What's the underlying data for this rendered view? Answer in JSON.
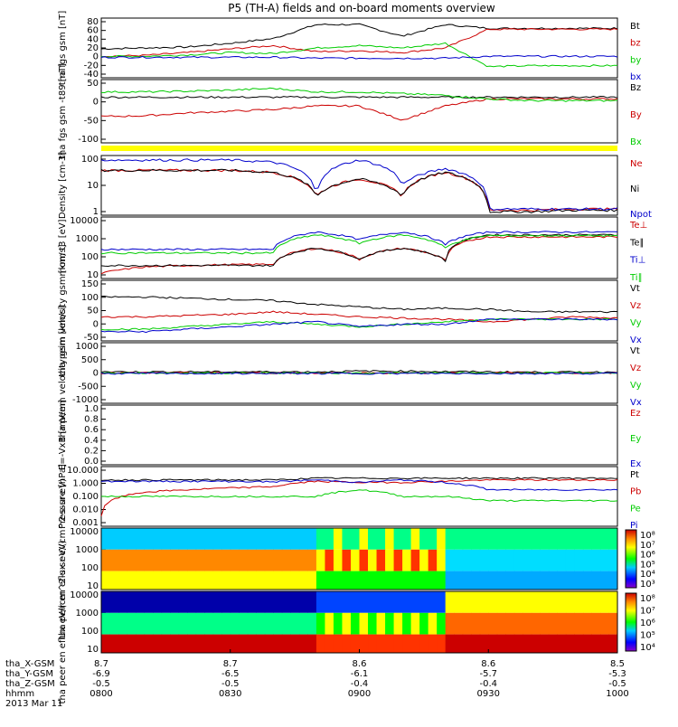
{
  "title": "P5 (TH-A) fields and on-board moments overview",
  "colors": {
    "black": "#000000",
    "red": "#cc0000",
    "green": "#00cc00",
    "blue": "#0000cc",
    "yellow": "#ffff00",
    "navy": "#000088"
  },
  "chart_data": [
    {
      "type": "line",
      "ylabel": "tha fgs gsm [nT]",
      "yticks": [
        "80",
        "60",
        "40",
        "20",
        "0",
        "-20",
        "-40"
      ],
      "ylim": [
        -40,
        80
      ],
      "series": [
        {
          "name": "Bt",
          "color": "black",
          "values": [
            18,
            20,
            22,
            30,
            40,
            70,
            70,
            45,
            70,
            62,
            62,
            62,
            62
          ]
        },
        {
          "name": "bz",
          "color": "red",
          "values": [
            2,
            4,
            10,
            18,
            25,
            12,
            14,
            10,
            20,
            60,
            60,
            60,
            60
          ]
        },
        {
          "name": "by",
          "color": "green",
          "values": [
            2,
            2,
            5,
            10,
            8,
            20,
            25,
            20,
            30,
            -20,
            -18,
            -18,
            -18
          ]
        },
        {
          "name": "bx",
          "color": "blue",
          "values": [
            0,
            0,
            0,
            0,
            0,
            -2,
            -2,
            -2,
            -2,
            2,
            2,
            2,
            2
          ]
        }
      ]
    },
    {
      "type": "line",
      "ylabel": "tha fgs gsm -t89 [nT]",
      "yticks": [
        "50",
        "0",
        "-50",
        "-100"
      ],
      "ylim": [
        -120,
        50
      ],
      "series": [
        {
          "name": "Bz",
          "color": "black",
          "values": [
            5,
            5,
            5,
            5,
            5,
            5,
            5,
            5,
            5,
            5,
            5,
            5,
            5
          ]
        },
        {
          "name": "By",
          "color": "red",
          "values": [
            -50,
            -48,
            -40,
            -35,
            -30,
            -20,
            -20,
            -60,
            -20,
            0,
            0,
            0,
            0
          ]
        },
        {
          "name": "Bx",
          "color": "green",
          "values": [
            20,
            20,
            22,
            25,
            30,
            20,
            20,
            15,
            10,
            0,
            -5,
            -5,
            -5
          ]
        }
      ]
    },
    {
      "type": "line",
      "ylabel": "Density [cm-3]",
      "yticks": [
        "100",
        "10",
        "1"
      ],
      "ylog": true,
      "ylim": [
        0.5,
        200
      ],
      "series": [
        {
          "name": "Ne",
          "color": "red",
          "values": [
            50,
            50,
            50,
            50,
            40,
            3,
            20,
            3,
            40,
            0.7,
            0.7,
            0.8,
            0.8
          ]
        },
        {
          "name": "Ni",
          "color": "black",
          "values": [
            50,
            50,
            50,
            50,
            40,
            3,
            20,
            3,
            40,
            0.6,
            0.6,
            0.7,
            0.7
          ]
        },
        {
          "name": "Npot",
          "color": "blue",
          "values": [
            150,
            150,
            150,
            150,
            120,
            2,
            150,
            10,
            60,
            0.8,
            0.8,
            0.8,
            0.8
          ]
        }
      ]
    },
    {
      "type": "line",
      "ylabel": "mom t3 [eV]",
      "yticks": [
        "10000",
        "1000",
        "100",
        "10"
      ],
      "ylog": true,
      "ylim": [
        5,
        20000
      ],
      "series": [
        {
          "name": "Te⊥",
          "color": "red",
          "values": [
            8,
            20,
            25,
            28,
            30,
            300,
            60,
            300,
            50,
            1500,
            1500,
            1500,
            1500
          ]
        },
        {
          "name": "Te∥",
          "color": "black",
          "values": [
            25,
            25,
            25,
            25,
            25,
            300,
            60,
            300,
            50,
            2000,
            2000,
            2000,
            2000
          ]
        },
        {
          "name": "Ti⊥",
          "color": "blue",
          "values": [
            250,
            250,
            250,
            250,
            250,
            3000,
            1000,
            3000,
            500,
            3000,
            3000,
            3000,
            3000
          ]
        },
        {
          "name": "Ti∥",
          "color": "green",
          "values": [
            150,
            150,
            150,
            150,
            150,
            2000,
            600,
            2000,
            300,
            1800,
            1800,
            1800,
            1800
          ]
        }
      ]
    },
    {
      "type": "line",
      "ylabel": "tha peim velocity gsm [km/s]",
      "yticks": [
        "150",
        "100",
        "50",
        "0",
        "-50"
      ],
      "ylim": [
        -80,
        150
      ],
      "series": [
        {
          "name": "Vt",
          "color": "black",
          "values": [
            90,
            90,
            85,
            80,
            75,
            60,
            50,
            40,
            45,
            40,
            30,
            30,
            30
          ]
        },
        {
          "name": "Vz",
          "color": "red",
          "values": [
            10,
            10,
            15,
            20,
            30,
            20,
            10,
            5,
            0,
            -10,
            0,
            10,
            5
          ]
        },
        {
          "name": "Vy",
          "color": "green",
          "values": [
            -40,
            -40,
            -30,
            -20,
            -10,
            -20,
            -30,
            -20,
            -10,
            0,
            0,
            0,
            0
          ]
        },
        {
          "name": "Vx",
          "color": "blue",
          "values": [
            -50,
            -50,
            -40,
            -30,
            -20,
            -10,
            -30,
            -20,
            -20,
            0,
            0,
            0,
            0
          ]
        }
      ]
    },
    {
      "type": "line",
      "ylabel": "tha peem velocity gsm [km/s]",
      "yticks": [
        "1000",
        "500",
        "0",
        "-500",
        "-1000"
      ],
      "ylim": [
        -1200,
        1200
      ],
      "series": [
        {
          "name": "Vt",
          "color": "black",
          "values": [
            50,
            50,
            50,
            50,
            50,
            50,
            80,
            80,
            60,
            50,
            40,
            40,
            40
          ]
        },
        {
          "name": "Vz",
          "color": "red",
          "values": [
            0,
            0,
            0,
            0,
            0,
            0,
            0,
            0,
            0,
            0,
            0,
            0,
            0
          ]
        },
        {
          "name": "Vy",
          "color": "green",
          "values": [
            0,
            0,
            0,
            0,
            0,
            0,
            0,
            0,
            0,
            0,
            0,
            0,
            0
          ]
        },
        {
          "name": "Vx",
          "color": "blue",
          "values": [
            -20,
            -20,
            -20,
            -20,
            -20,
            -20,
            -20,
            -20,
            -20,
            -20,
            -20,
            -20,
            -20
          ]
        }
      ]
    },
    {
      "type": "line",
      "ylabel": "E=-VxB [mV/m]",
      "yticks": [
        "1.0",
        "0.8",
        "0.6",
        "0.4",
        "0.2",
        "0.0"
      ],
      "ylim": [
        0,
        1
      ],
      "series": [
        {
          "name": "Ez",
          "color": "red",
          "values": []
        },
        {
          "name": "Ey",
          "color": "green",
          "values": []
        },
        {
          "name": "Ex",
          "color": "blue",
          "values": []
        }
      ]
    },
    {
      "type": "line",
      "ylabel": "Pressure [nPa]",
      "yticks": [
        "10.000",
        "1.000",
        "0.100",
        "0.010",
        "0.001"
      ],
      "ylog": true,
      "ylim": [
        0.001,
        10
      ],
      "series": [
        {
          "name": "Pt",
          "color": "black",
          "values": [
            1.5,
            1.5,
            1.5,
            1.5,
            1.5,
            2,
            2,
            2,
            2,
            2,
            2,
            2,
            2
          ]
        },
        {
          "name": "Pb",
          "color": "red",
          "values": [
            0.004,
            0.2,
            0.3,
            0.4,
            0.5,
            1.2,
            1.0,
            1.0,
            1.2,
            1.5,
            1.5,
            1.5,
            1.5
          ]
        },
        {
          "name": "Pe",
          "color": "green",
          "values": [
            0.1,
            0.1,
            0.1,
            0.1,
            0.1,
            0.1,
            0.3,
            0.1,
            0.1,
            0.05,
            0.05,
            0.05,
            0.05
          ]
        },
        {
          "name": "Pi",
          "color": "blue",
          "values": [
            1.2,
            1.2,
            1.2,
            1.2,
            1.1,
            1.5,
            1.0,
            1.5,
            1.0,
            0.3,
            0.3,
            0.3,
            0.3
          ]
        }
      ]
    },
    {
      "type": "heatmap",
      "ylabel": "tha peir en eflux eV/(cm^2-s-sr-eV)",
      "yticks": [
        "10000",
        "1000",
        "100",
        "10"
      ],
      "colorbar_ticks": [
        "10⁸",
        "10⁷",
        "10⁶",
        "10⁵",
        "10⁴",
        "10³"
      ]
    },
    {
      "type": "heatmap",
      "ylabel": "tha peer en eflux eV/(cm^2-s-sr-eV)",
      "yticks": [
        "10000",
        "1000",
        "100",
        "10"
      ],
      "colorbar_ticks": [
        "10⁸",
        "10⁷",
        "10⁶",
        "10⁵",
        "10⁴"
      ]
    }
  ],
  "x_axis": {
    "rows": [
      {
        "label": "tha_X-GSM",
        "values": [
          "8.7",
          "8.7",
          "8.6",
          "8.6",
          "8.5"
        ]
      },
      {
        "label": "tha_Y-GSM",
        "values": [
          "-6.9",
          "-6.5",
          "-6.1",
          "-5.7",
          "-5.3"
        ]
      },
      {
        "label": "tha_Z-GSM",
        "values": [
          "-0.5",
          "-0.5",
          "-0.4",
          "-0.4",
          "-0.5"
        ]
      },
      {
        "label": "hhmm",
        "values": [
          "0800",
          "0830",
          "0900",
          "0930",
          "1000"
        ]
      }
    ],
    "date": "2013 Mar 11"
  }
}
